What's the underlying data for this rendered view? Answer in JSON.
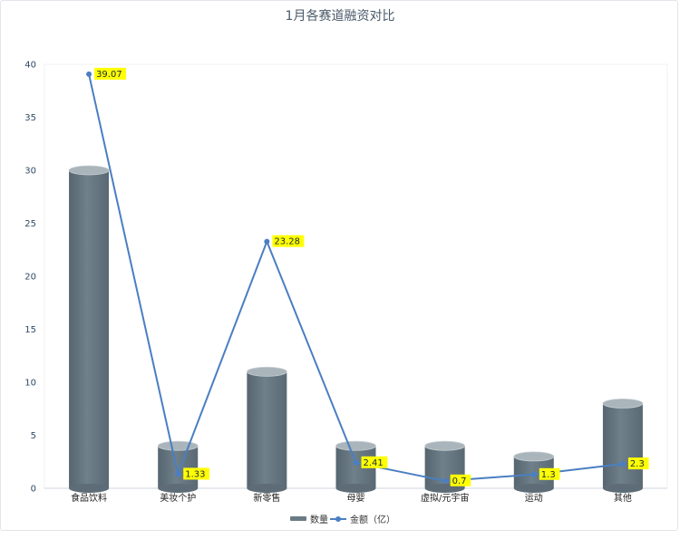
{
  "chart_data": {
    "type": "bar",
    "title": "1月各赛道融资对比",
    "categories": [
      "食品饮料",
      "美妆个护",
      "新零售",
      "母婴",
      "虚拟/元宇宙",
      "运动",
      "其他"
    ],
    "series": [
      {
        "name": "数量",
        "type": "bar",
        "values": [
          30,
          4,
          11,
          4,
          4,
          3,
          8
        ],
        "color": "#6b7b85"
      },
      {
        "name": "金额（亿）",
        "type": "line",
        "values": [
          39.07,
          1.33,
          23.28,
          2.41,
          0.7,
          1.3,
          2.3
        ],
        "color": "#4a7fc1",
        "data_labels": [
          "39.07",
          "1.33",
          "23.28",
          "2.41",
          "0.7",
          "1.3",
          "2.3"
        ]
      }
    ],
    "ylim": [
      0,
      40
    ],
    "yticks": [
      0,
      5,
      10,
      15,
      20,
      25,
      30,
      35,
      40
    ],
    "grid": false,
    "legend_position": "bottom",
    "label_highlight_color": "#ffff00"
  }
}
